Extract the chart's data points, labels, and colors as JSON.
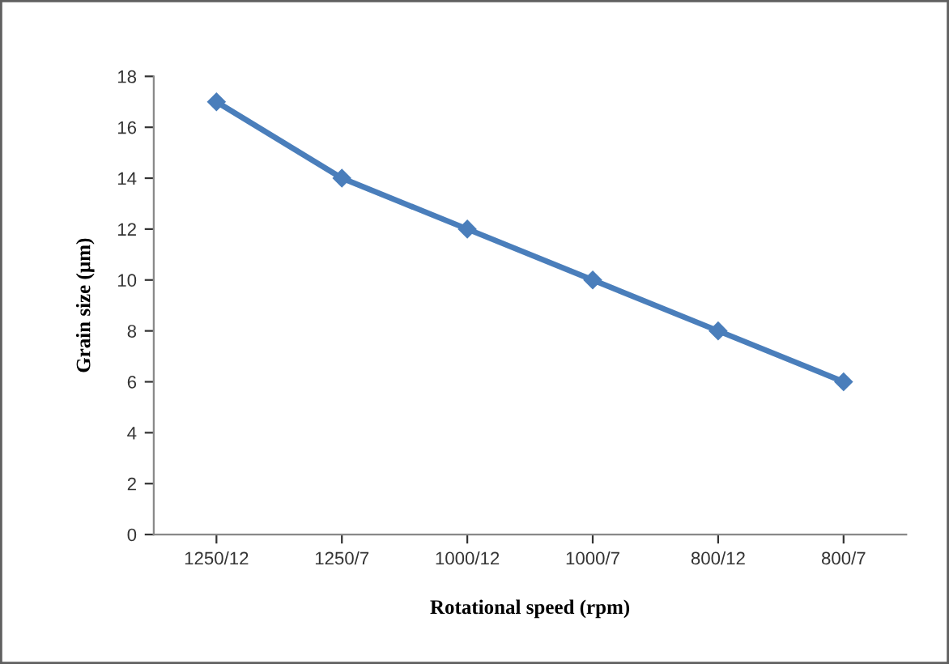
{
  "chart_data": {
    "type": "line",
    "xlabel": "Rotational speed (rpm)",
    "ylabel": "Grain size (µm)",
    "categories": [
      "1250/12",
      "1250/7",
      "1000/12",
      "1000/7",
      "800/12",
      "800/7"
    ],
    "series": [
      {
        "color": "#4a7ebb",
        "values": [
          17,
          14,
          12,
          10,
          8,
          6
        ]
      }
    ],
    "ylim": [
      0,
      18
    ],
    "yticks": [
      0,
      2,
      4,
      6,
      8,
      10,
      12,
      14,
      16,
      18
    ],
    "grid": false,
    "legend": false,
    "marker": "diamond",
    "line_style": "solid"
  }
}
